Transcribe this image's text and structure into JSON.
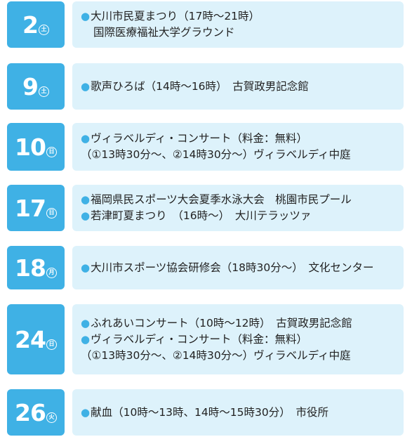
{
  "events": [
    {
      "day": "2",
      "dow": "土",
      "lines": [
        {
          "bullet": true,
          "text": "大川市民夏まつり（17時～21時）"
        },
        {
          "bullet": false,
          "indent": true,
          "text": "国際医療福祉大学グラウンド"
        }
      ]
    },
    {
      "day": "9",
      "dow": "土",
      "lines": [
        {
          "bullet": true,
          "text": "歌声ひろば（14時～16時）　古賀政男記念館"
        }
      ]
    },
    {
      "day": "10",
      "dow": "日",
      "lines": [
        {
          "bullet": true,
          "text": "ヴィラベルディ・コンサート（料金：無料）"
        },
        {
          "bullet": false,
          "indent": false,
          "text": "（①13時30分～、②14時30分～）ヴィラベルディ中庭"
        }
      ]
    },
    {
      "day": "17",
      "dow": "日",
      "lines": [
        {
          "bullet": true,
          "text": "福岡県民スポーツ大会夏季水泳大会　桃園市民プール"
        },
        {
          "bullet": true,
          "text": "若津町夏まつり　（16時～）　大川テラッツァ"
        }
      ]
    },
    {
      "day": "18",
      "dow": "月",
      "lines": [
        {
          "bullet": true,
          "text": "大川市スポーツ協会研修会（18時30分～）　文化センター"
        }
      ]
    },
    {
      "day": "24",
      "dow": "日",
      "lines": [
        {
          "bullet": true,
          "text": "ふれあいコンサート（10時～12時）　古賀政男記念館"
        },
        {
          "bullet": true,
          "text": "ヴィラベルディ・コンサート（料金：無料）"
        },
        {
          "bullet": false,
          "indent": false,
          "text": "（①13時30分～、②14時30分～）ヴィラベルディ中庭"
        }
      ]
    },
    {
      "day": "26",
      "dow": "火",
      "lines": [
        {
          "bullet": true,
          "text": "献血（10時～13時、14時～15時30分）　市役所"
        }
      ]
    }
  ],
  "bullet_char": "●",
  "colors": {
    "accent": "#3fb1e5",
    "box_bg": "#ddf2fb",
    "text": "#222222"
  }
}
